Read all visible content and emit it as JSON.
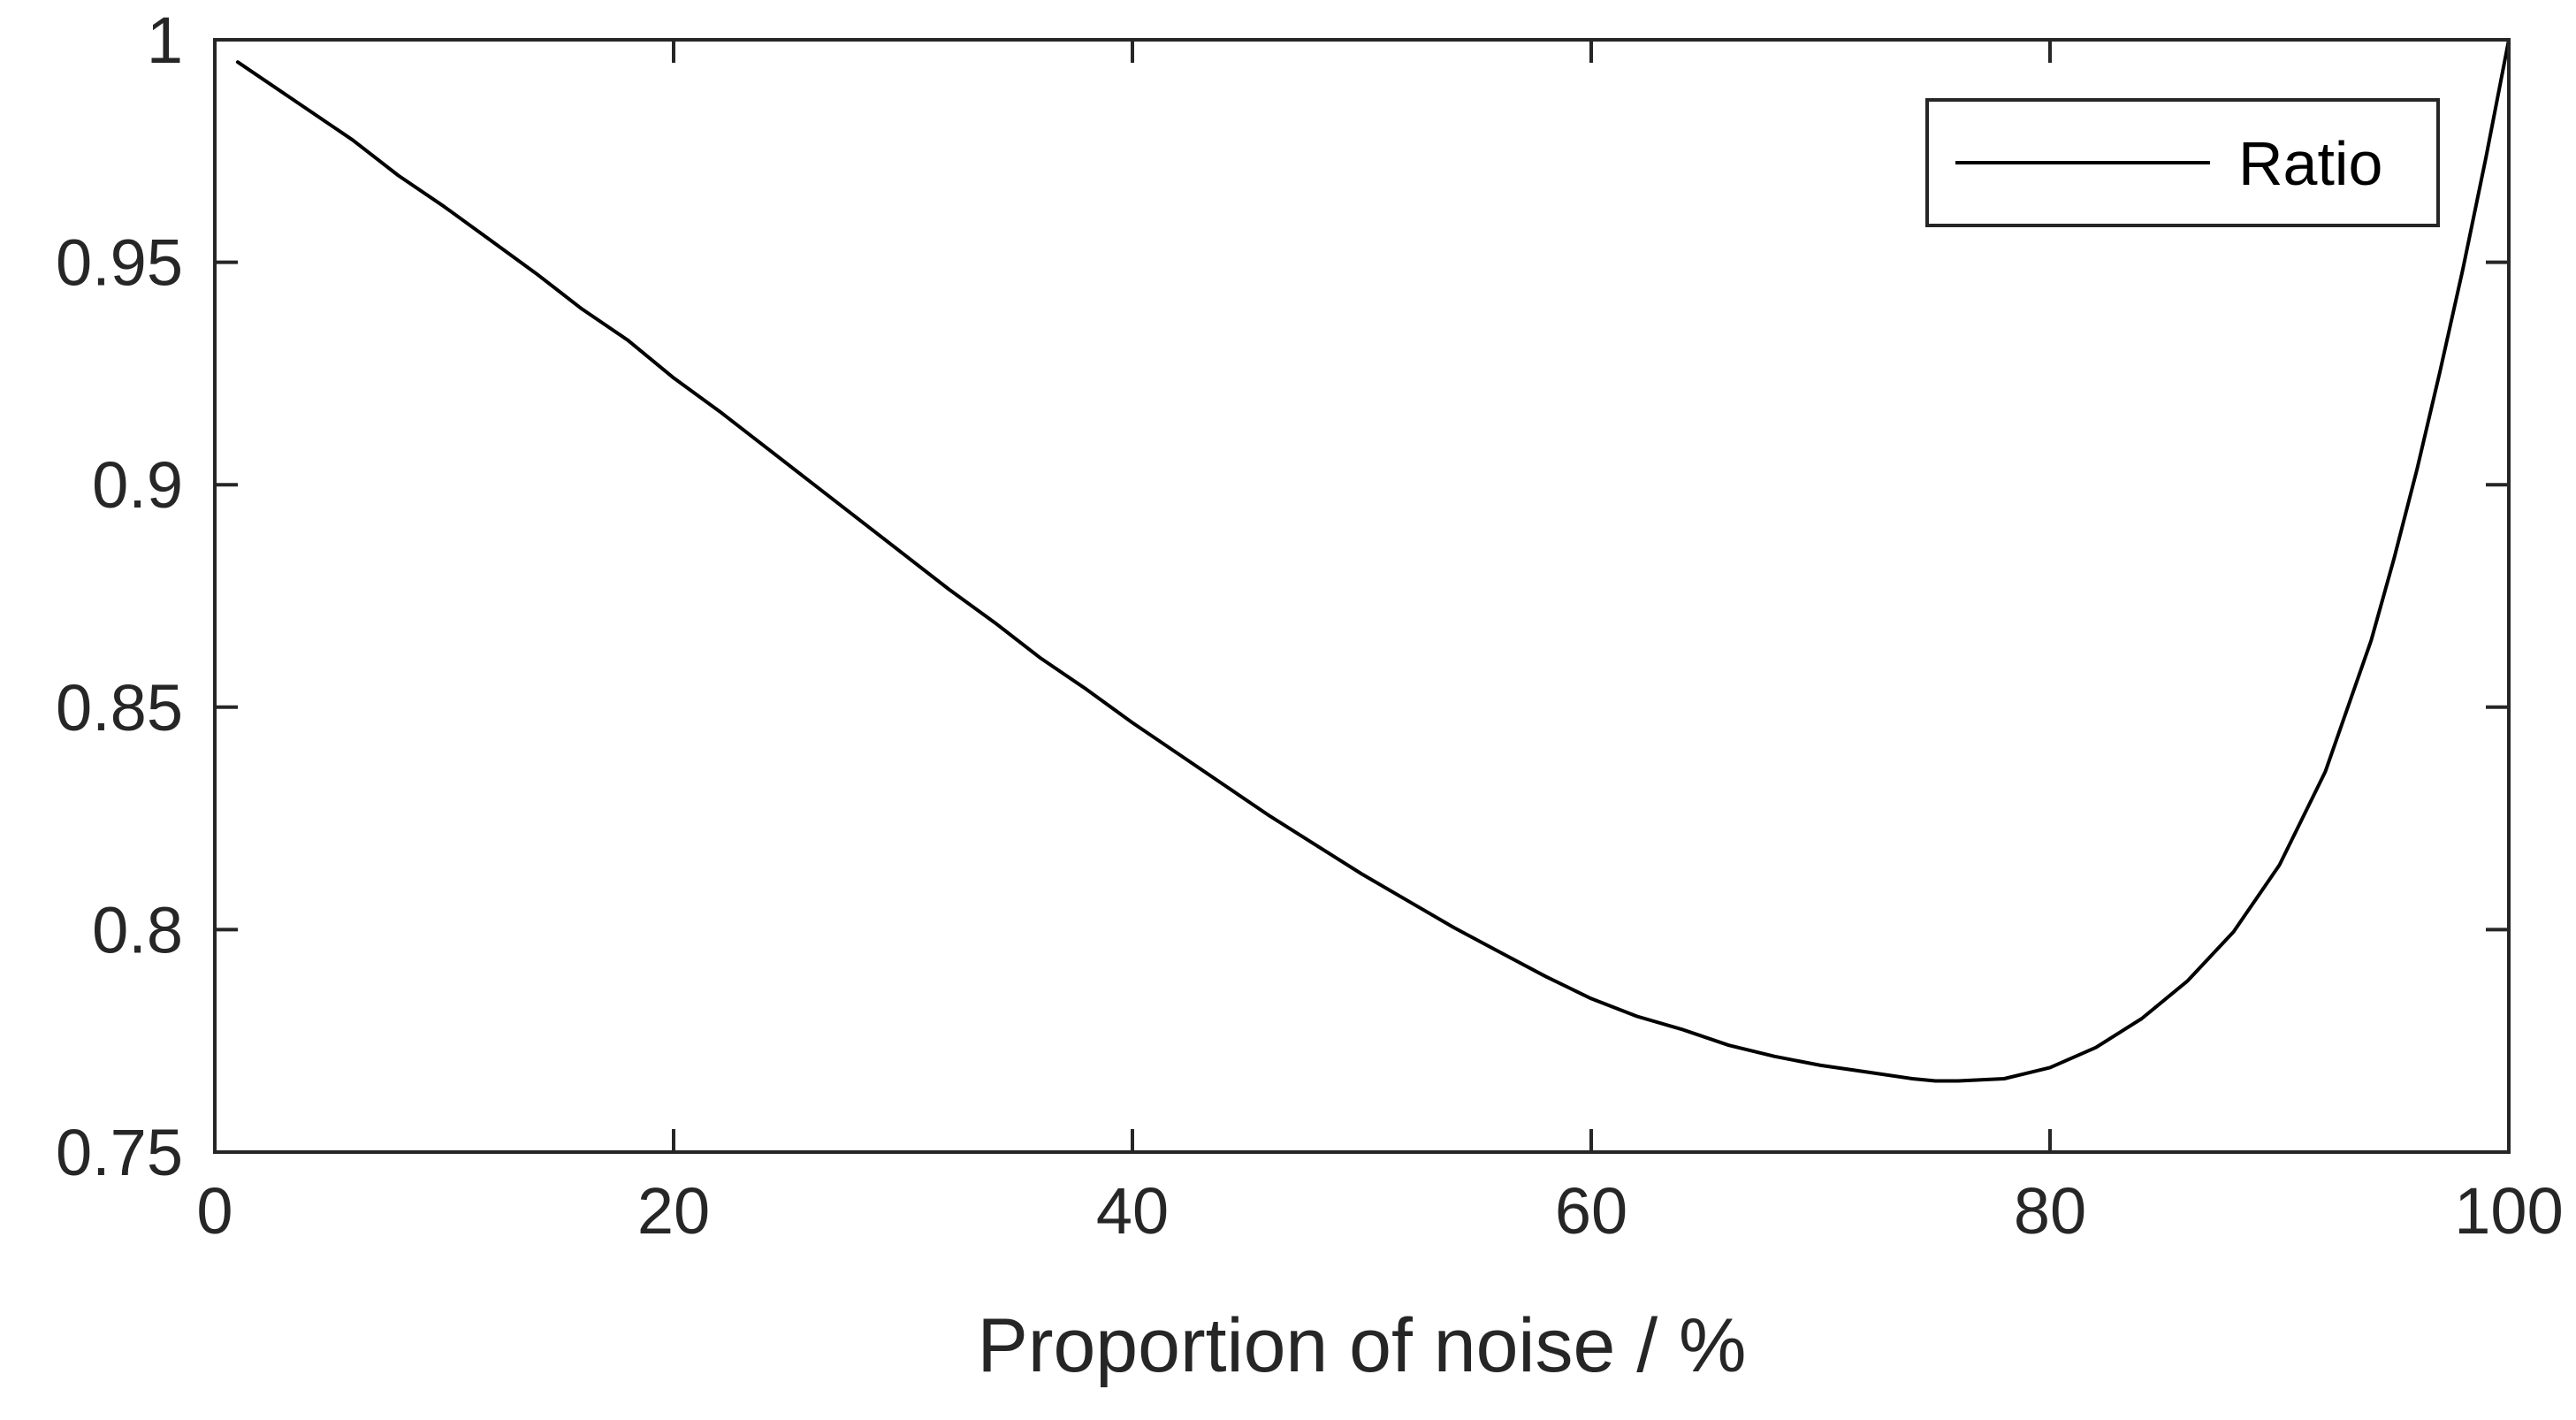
{
  "chart_data": {
    "type": "line",
    "title": "",
    "xlabel": "Proportion of noise / %",
    "ylabel": "",
    "xlim": [
      0,
      100
    ],
    "ylim": [
      0.75,
      1
    ],
    "xticks": [
      0,
      20,
      40,
      60,
      80,
      100
    ],
    "xtick_labels": [
      "0",
      "20",
      "40",
      "60",
      "80",
      "100"
    ],
    "yticks": [
      0.75,
      0.8,
      0.85,
      0.9,
      0.95,
      1
    ],
    "ytick_labels": [
      "0.75",
      "0.8",
      "0.85",
      "0.9",
      "0.95",
      "1"
    ],
    "grid": false,
    "legend_position": "top-right",
    "series": [
      {
        "name": "Ratio",
        "color": "#000000",
        "x": [
          1,
          2,
          4,
          6,
          8,
          10,
          12,
          14,
          16,
          18,
          20,
          22,
          24,
          26,
          28,
          30,
          32,
          34,
          36,
          38,
          40,
          42,
          44,
          46,
          48,
          50,
          52,
          54,
          56,
          58,
          60,
          62,
          64,
          66,
          68,
          70,
          72,
          74,
          75,
          76,
          78,
          80,
          82,
          84,
          86,
          88,
          90,
          92,
          94,
          95,
          96,
          97,
          98,
          99,
          100
        ],
        "y": [
          0.995,
          0.9915,
          0.9845,
          0.9775,
          0.9695,
          0.9625,
          0.955,
          0.9475,
          0.9395,
          0.9325,
          0.924,
          0.9165,
          0.9085,
          0.9005,
          0.8925,
          0.8845,
          0.8765,
          0.869,
          0.861,
          0.854,
          0.8465,
          0.8395,
          0.8325,
          0.8255,
          0.819,
          0.8125,
          0.8065,
          0.8005,
          0.795,
          0.7895,
          0.7845,
          0.7805,
          0.7775,
          0.774,
          0.7715,
          0.7695,
          0.768,
          0.7665,
          0.766,
          0.766,
          0.7665,
          0.769,
          0.7735,
          0.78,
          0.7885,
          0.7995,
          0.8145,
          0.8355,
          0.865,
          0.8835,
          0.9035,
          0.9255,
          0.9485,
          0.9735,
          1.0
        ]
      }
    ]
  }
}
